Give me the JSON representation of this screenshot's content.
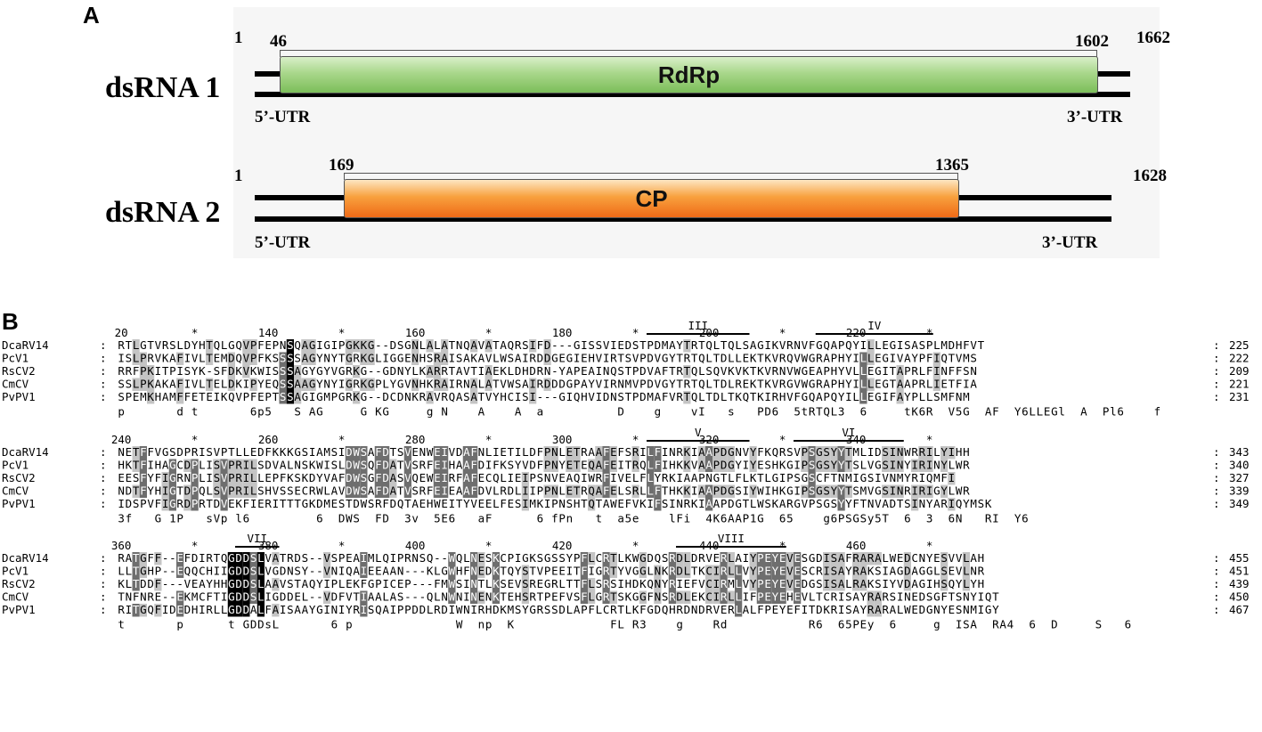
{
  "panel_a": {
    "label": "A",
    "dsrna1": {
      "name": "dsRNA 1",
      "start": "1",
      "orf_start": "46",
      "orf_end": "1602",
      "end": "1662",
      "gene": "RdRp",
      "utr5": "5’-UTR",
      "utr3": "3’-UTR",
      "gene_color": "#8cc96a"
    },
    "dsrna2": {
      "name": "dsRNA 2",
      "start": "1",
      "orf_start": "169",
      "orf_end": "1365",
      "end": "1628",
      "gene": "CP",
      "utr5": "5’-UTR",
      "utr3": "3’-UTR",
      "gene_color": "#f28a2e"
    }
  },
  "panel_b": {
    "label": "B",
    "colors": {
      "identical": "#000000",
      "similar_dark": "#6e6e6e",
      "similar_light": "#c4c4c4"
    },
    "blocks": [
      {
        "ruler": [
          {
            "text": "20",
            "col": 0
          },
          {
            "text": "*",
            "col": 10
          },
          {
            "text": "140",
            "col": 20
          },
          {
            "text": "*",
            "col": 30
          },
          {
            "text": "160",
            "col": 40
          },
          {
            "text": "*",
            "col": 50
          },
          {
            "text": "180",
            "col": 60
          },
          {
            "text": "*",
            "col": 70
          },
          {
            "text": "200",
            "col": 80
          },
          {
            "text": "*",
            "col": 90
          },
          {
            "text": "220",
            "col": 100
          },
          {
            "text": "*",
            "col": 110
          }
        ],
        "motifs": [
          {
            "name": "III",
            "from": 72,
            "to": 85
          },
          {
            "name": "IV",
            "from": 95,
            "to": 110
          }
        ],
        "rows": [
          {
            "name": "DcaRV14",
            "seq": "RTLGTVRSLDYHTQLGQVPFEPNSQAGIGIPGKKG--DSGNLALATNQAVATAQRSIFD---GISSVIEDSTPDMAYTRTQLTQLSAGIKVRNVFGQAPQYILLEGISASPLMDHFVT",
            "end": "225"
          },
          {
            "name": "PcV1",
            "seq": "ISLPRVKAFIVLTEMDQVPFKSSSSAGYNYTGRKGLIGGENHSRAISAKAVLWSAIRDDGEGIEHVIRTSVPDVGYTRTQLTDLLEKTKVRQVWGRAPHYILLEGIVAYPFIQTVMS",
            "end": "222"
          },
          {
            "name": "RsCV2",
            "seq": "RRFPKITPISYK-SFDKVKWISSSAGYGYVGRKG--GDNYLKARRTAVTIAEKLDHDRN-YAPEAINQSTPDVAFTRTQLSQVKVKTKVRNVWGEAPHYVLLEGITAPRLFINFFSN",
            "end": "209"
          },
          {
            "name": "CmCV",
            "seq": "SSLPKAKAFIVLTELDKIPYEQSSAAGYNYIGRKGPLYGVNHKRAIRNALATVWSAIRDDDGPAYVIRNMVPDVGYTRTQLTDLREKTKVRGVWGRAPHYILLEGTAAPRLIETFIA",
            "end": "221"
          },
          {
            "name": "PvPV1",
            "seq": "SPEMKHAMFFETEIKQVPFEPTSSAGIGMPGRKG--DCDNKRAVRQASATVYHCISI---GIQHVIDNSTPDMAFVRTQLTDLTKQTKIRHVFGQAPQYILLEGIFAYPLLSMFNM",
            "end": "231"
          }
        ],
        "consensus": "p       d t       6p5   S AG     G KG     g N    A    A  a          D    g    vI   s   PD6  5tRTQL3  6     tK6R  V5G  AF  Y6LLEGl  A  Pl6    f  "
      },
      {
        "ruler": [
          {
            "text": "240",
            "col": 0
          },
          {
            "text": "*",
            "col": 10
          },
          {
            "text": "260",
            "col": 20
          },
          {
            "text": "*",
            "col": 30
          },
          {
            "text": "280",
            "col": 40
          },
          {
            "text": "*",
            "col": 50
          },
          {
            "text": "300",
            "col": 60
          },
          {
            "text": "*",
            "col": 70
          },
          {
            "text": "320",
            "col": 80
          },
          {
            "text": "*",
            "col": 90
          },
          {
            "text": "340",
            "col": 100
          },
          {
            "text": "*",
            "col": 110
          }
        ],
        "motifs": [
          {
            "name": "V",
            "from": 72,
            "to": 85
          },
          {
            "name": "VI",
            "from": 92,
            "to": 106
          }
        ],
        "rows": [
          {
            "name": "DcaRV14",
            "seq": "NETFFVGSDPRISVPTLLEDFKKKGSIAMSIDWSAFDTSVENWEIVDAFNLIETILDFPNLETRAAFEFSRILFINRKIAAPDGNVYFKQRSVPSGSYYTMLIDSINWRRILYIHH",
            "end": "343"
          },
          {
            "name": "PcV1",
            "seq": "HKTFIHAGCDPLISVPRILSDVALNSKWISLDWSQFDATVSRFEIHAAFDIFKSYVDFPNYETEQAFEITRQLFIHKKVAAPDGYIYESHKGIPSGSYYTSLVGSINYIRINYLWR",
            "end": "340"
          },
          {
            "name": "RsCV2",
            "seq": "EESFYFIGRNPLISVPRILLEPFKSKDYVAFDWSGFDASVQEWEIRFAFECQLIEIPSNVEAQIWRFIVELFLYRKIAAPNGTLFLKTLGIPSGSCFTNMIGSIVNMYRIQMFI",
            "end": "327"
          },
          {
            "name": "CmCV",
            "seq": "NDTFYHIGTDPQLSVPRILSHVSSECRWLAVDWSAFDATVSRFEIEAAFDVLRDLIIPPNLETRQAFELSRLLFTHKKIAAPDGSIYWIHKGIPSGSYYTSMVGSINRIRIGYLWR",
            "end": "339"
          },
          {
            "name": "PvPV1",
            "seq": "IDSPVFIGRDPRTDVEKFIERITTTGKDMESTDWSRFDQTAEHWEITYVEELFESIMKIPNSHTQTAWEFVKIFSINRKIAAPDGTLWSKARGVPSGSYYFTNVADTSINYARIQYMSK",
            "end": "349"
          }
        ],
        "consensus": "3f   G 1P   sVp l6         6  DWS  FD  3v  5E6   aF      6 fPn   t  a5e    lFi  4K6AAP1G  65    g6PSGSy5T  6  3  6N   RI  Y6"
      },
      {
        "ruler": [
          {
            "text": "360",
            "col": 0
          },
          {
            "text": "*",
            "col": 10
          },
          {
            "text": "380",
            "col": 20
          },
          {
            "text": "*",
            "col": 30
          },
          {
            "text": "400",
            "col": 40
          },
          {
            "text": "*",
            "col": 50
          },
          {
            "text": "420",
            "col": 60
          },
          {
            "text": "*",
            "col": 70
          },
          {
            "text": "440",
            "col": 80
          },
          {
            "text": "*",
            "col": 90
          },
          {
            "text": "460",
            "col": 100
          },
          {
            "text": "*",
            "col": 110
          }
        ],
        "motifs": [
          {
            "name": "VII",
            "from": 16,
            "to": 21
          },
          {
            "name": "VIII",
            "from": 76,
            "to": 90
          }
        ],
        "rows": [
          {
            "name": "DcaRV14",
            "seq": "RATGFF--EFDIRTQGDDSLVATRDS--VSPEAIMLQIPRNSQ--WQLNESKCPIGKSGSSYPFLCRTLKWGDQSRDLDRVERLAIYPEYEVESGDISAFRARALWEDCNYESVVLAH",
            "end": "455"
          },
          {
            "name": "PcV1",
            "seq": "LLTGHP--EQQCHIIGDDSLVGDNSY--VNIQAIEEAAN---KLGWHFNEDKTQYSTVPEEITFIGRTYVGGLNKRDLTKCIRLLVYPEYEVESCRISAYRAKSIAGDAGGLSEVLNR",
            "end": "451"
          },
          {
            "name": "RsCV2",
            "seq": "KLTDDF---VEAYHHGDDSLAAVSTAQYIPLEKFGPICEP---FMWSINTLKSEVSREGRLTTFLSRSIHDKQNYRIEFVCIRMLVYPEYEVEDGSISALRAKSIYVDAGIHSQYLYH",
            "end": "439"
          },
          {
            "name": "CmCV",
            "seq": "TNFNRE--EKMCFTIGDDSLIGDDEL--VDFVTIAALAS---QLNWNINENKTEHSRTPEFVSFLGRTSKGGFNSRDLEKCIRLLIFPEYEHEVLTCRISAYRARSINEDSGFTSNYIQT",
            "end": "450"
          },
          {
            "name": "PvPV1",
            "seq": "RITGQFIDEDHIRLLGDDALFAISAAYGINIYRISQAIPPDDLRDIWNIRHDKMSYGRSSDLAPFLCRTLKFGDQHRDNDRVERLALFPEYEFITDKRISAYRARALWEDGNYESNMIGY",
            "end": "467"
          }
        ],
        "consensus": "t       p      t GDDsL       6 p              W  np  K             FL R3    g    Rd           R6  65PEy  6     g  ISA  RA4  6  D     S   6"
      }
    ]
  }
}
